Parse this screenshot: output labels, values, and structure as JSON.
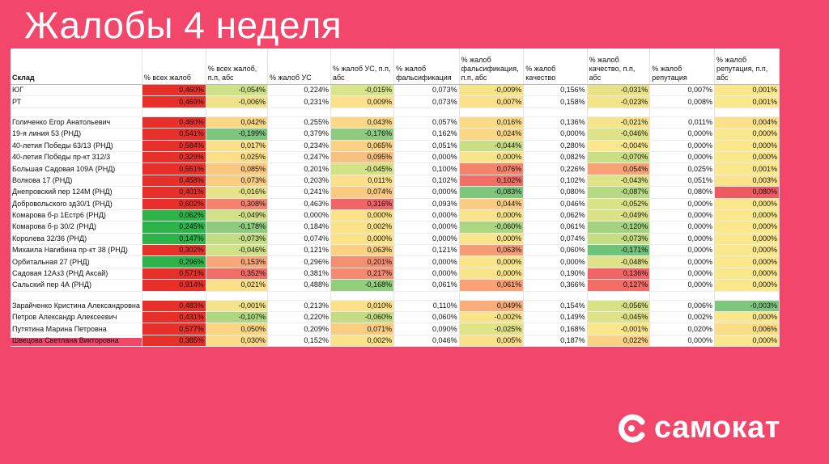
{
  "title": "Жалобы 4 неделя",
  "brand": "самокат",
  "colors": {
    "background": "#F2476A",
    "red": "#E8302A",
    "green": "#2DB34A"
  },
  "table": {
    "headers": [
      "Склад",
      "% всех жалоб",
      "% всех жалоб, п.п, абс",
      "% жалоб УС",
      "% жалоб УС, п.п, абс",
      "% жалоб фальсификация",
      "% жалоб фальсификация, п.п, абс",
      "% жалоб качество",
      "% жалоб качество, п.п, абс",
      "% жалоб репутация",
      "% жалоб репутация, п.п, абс"
    ],
    "rows": [
      {
        "type": "row",
        "name": "ЮГ",
        "values": [
          "0,460%",
          "-0,054%",
          "0,224%",
          "-0,015%",
          "0,073%",
          "-0,009%",
          "0,156%",
          "-0,031%",
          "0,007%",
          "0,001%"
        ],
        "colors": [
          "#E8302A",
          "#CFE287",
          "#FFFFFF",
          "#D9E58A",
          "#FFFFFF",
          "#F8E58A",
          "#FFFFFF",
          "#E8E388",
          "#FFFFFF",
          "#FBE78C"
        ]
      },
      {
        "type": "row",
        "name": "РТ",
        "values": [
          "0,469%",
          "-0,006%",
          "0,231%",
          "0,009%",
          "0,073%",
          "0,007%",
          "0,158%",
          "-0,023%",
          "0,008%",
          "0,001%"
        ],
        "colors": [
          "#E8302A",
          "#EFE289",
          "#FFFFFF",
          "#FCE18A",
          "#FFFFFF",
          "#FCE08A",
          "#FFFFFF",
          "#F3E389",
          "#FFFFFF",
          "#FBE78C"
        ]
      },
      {
        "type": "blank"
      },
      {
        "type": "row",
        "name": "Голиченко Егор Анатольевич",
        "values": [
          "0,460%",
          "0,042%",
          "0,255%",
          "0,043%",
          "0,057%",
          "0,016%",
          "0,136%",
          "-0,021%",
          "0,011%",
          "0,004%"
        ],
        "colors": [
          "#E8302A",
          "#FDD884",
          "#FFFFFF",
          "#FCD886",
          "#FFFFFF",
          "#FCDB86",
          "#FFFFFF",
          "#F6E58A",
          "#FFFFFF",
          "#FBE28A"
        ]
      },
      {
        "type": "row",
        "name": "19-я линия 53 (РНД)",
        "values": [
          "0,541%",
          "-0,199%",
          "0,379%",
          "-0,176%",
          "0,162%",
          "0,024%",
          "0,000%",
          "-0,046%",
          "0,000%",
          "0,000%"
        ],
        "colors": [
          "#E8302A",
          "#7EC67D",
          "#FFFFFF",
          "#8FCB7E",
          "#FFFFFF",
          "#FBD684",
          "#FFFFFF",
          "#DFE387",
          "#FFFFFF",
          "#FBE78C"
        ]
      },
      {
        "type": "row",
        "name": "40-летия Победы 63/13 (РНД)",
        "values": [
          "0,584%",
          "0,017%",
          "0,234%",
          "0,065%",
          "0,051%",
          "-0,044%",
          "0,280%",
          "-0,004%",
          "0,000%",
          "0,000%"
        ],
        "colors": [
          "#E8302A",
          "#FBE08A",
          "#FFFFFF",
          "#FBD184",
          "#FFFFFF",
          "#C7DE84",
          "#FFFFFF",
          "#FBE78C",
          "#FFFFFF",
          "#FBE78C"
        ]
      },
      {
        "type": "row",
        "name": "40-летия Победы пр-кт 312/3",
        "values": [
          "0,329%",
          "0,025%",
          "0,247%",
          "0,095%",
          "0,000%",
          "0,000%",
          "0,082%",
          "-0,070%",
          "0,000%",
          "0,000%"
        ],
        "colors": [
          "#E8302A",
          "#FBDE88",
          "#FFFFFF",
          "#F9C07F",
          "#FFFFFF",
          "#FBE58B",
          "#FFFFFF",
          "#CADF84",
          "#FFFFFF",
          "#FBE78C"
        ]
      },
      {
        "type": "row",
        "name": "Большая Садовая 109А (РНД)",
        "values": [
          "0,551%",
          "0,085%",
          "0,201%",
          "-0,045%",
          "0,100%",
          "0,076%",
          "0,226%",
          "0,054%",
          "0,025%",
          "0,001%"
        ],
        "colors": [
          "#E8302A",
          "#FAC880",
          "#FFFFFF",
          "#D4E185",
          "#FFFFFF",
          "#F5846D",
          "#FFFFFF",
          "#F8A276",
          "#FFFFFF",
          "#FBE78C"
        ]
      },
      {
        "type": "row",
        "name": "Волкова 17 (РНД)",
        "values": [
          "0,458%",
          "0,073%",
          "0,203%",
          "0,011%",
          "0,102%",
          "0,102%",
          "0,102%",
          "-0,043%",
          "0,051%",
          "0,003%"
        ],
        "colors": [
          "#E8302A",
          "#FACD82",
          "#FFFFFF",
          "#FCE18A",
          "#FFFFFF",
          "#F26F67",
          "#FFFFFF",
          "#E1E387",
          "#FFFFFF",
          "#FBE48B"
        ]
      },
      {
        "type": "row",
        "name": "Днепровский пер 124М (РНД)",
        "values": [
          "0,401%",
          "-0,016%",
          "0,241%",
          "0,074%",
          "0,000%",
          "-0,083%",
          "0,080%",
          "-0,087%",
          "0,080%",
          "0,080%"
        ],
        "colors": [
          "#E8302A",
          "#E8E388",
          "#FFFFFF",
          "#FACA81",
          "#FFFFFF",
          "#7EC67D",
          "#FFFFFF",
          "#B8D983",
          "#FFFFFF",
          "#EE5A5F"
        ]
      },
      {
        "type": "row",
        "name": "Добровольского зд30/1 (РНД)",
        "values": [
          "0,602%",
          "0,308%",
          "0,463%",
          "0,316%",
          "0,093%",
          "0,044%",
          "0,046%",
          "-0,052%",
          "0,000%",
          "0,000%"
        ],
        "colors": [
          "#E8302A",
          "#F4846D",
          "#FFFFFF",
          "#F16566",
          "#FFFFFF",
          "#FACB82",
          "#FFFFFF",
          "#DAE386",
          "#FFFFFF",
          "#FBE78C"
        ]
      },
      {
        "type": "row",
        "name": "Комарова б-р 1Естр6 (РНД)",
        "values": [
          "0,062%",
          "-0,049%",
          "0,000%",
          "0,000%",
          "0,000%",
          "0,000%",
          "0,062%",
          "-0,049%",
          "0,000%",
          "0,000%"
        ],
        "colors": [
          "#2DB34A",
          "#D2E186",
          "#FFFFFF",
          "#FCE38A",
          "#FFFFFF",
          "#FBE58B",
          "#FFFFFF",
          "#DCE386",
          "#FFFFFF",
          "#FBE78C"
        ]
      },
      {
        "type": "row",
        "name": "Комарова б-р 30/2 (РНД)",
        "values": [
          "0,245%",
          "-0,178%",
          "0,184%",
          "0,002%",
          "0,000%",
          "-0,060%",
          "0,061%",
          "-0,120%",
          "0,000%",
          "0,000%"
        ],
        "colors": [
          "#2DB34A",
          "#8FCB7E",
          "#FFFFFF",
          "#FCE38A",
          "#FFFFFF",
          "#ACD682",
          "#FFFFFF",
          "#A3D380",
          "#FFFFFF",
          "#FBE78C"
        ]
      },
      {
        "type": "row",
        "name": "Королева 32/36 (РНД)",
        "values": [
          "0,147%",
          "-0,073%",
          "0,074%",
          "0,000%",
          "0,000%",
          "0,000%",
          "0,074%",
          "-0,073%",
          "0,000%",
          "0,000%"
        ],
        "colors": [
          "#2DB34A",
          "#C3DD84",
          "#FFFFFF",
          "#FCE38A",
          "#FFFFFF",
          "#FBE58B",
          "#FFFFFF",
          "#C6DE84",
          "#FFFFFF",
          "#FBE78C"
        ]
      },
      {
        "type": "row",
        "name": "Михаила Нагибина пр-кт 38 (РНД)",
        "values": [
          "0,302%",
          "-0,046%",
          "0,121%",
          "0,063%",
          "0,121%",
          "0,063%",
          "0,060%",
          "-0,171%",
          "0,000%",
          "0,000%"
        ],
        "colors": [
          "#E8302A",
          "#D3E186",
          "#FFFFFF",
          "#FBD284",
          "#FFFFFF",
          "#F69B74",
          "#FFFFFF",
          "#6FC27A",
          "#FFFFFF",
          "#FBE78C"
        ]
      },
      {
        "type": "row",
        "name": "Орбитальная 27 (РНД)",
        "values": [
          "0,296%",
          "0,153%",
          "0,296%",
          "0,201%",
          "0,000%",
          "0,000%",
          "0,000%",
          "-0,048%",
          "0,000%",
          "0,000%"
        ],
        "colors": [
          "#2DB34A",
          "#F8A778",
          "#FFFFFF",
          "#F49070",
          "#FFFFFF",
          "#FBE58B",
          "#FFFFFF",
          "#DDE386",
          "#FFFFFF",
          "#FBE78C"
        ]
      },
      {
        "type": "row",
        "name": "Садовая 12Аз3 (РНД Аксай)",
        "values": [
          "0,571%",
          "0,352%",
          "0,381%",
          "0,217%",
          "0,000%",
          "0,000%",
          "0,190%",
          "0,136%",
          "0,000%",
          "0,000%"
        ],
        "colors": [
          "#E8302A",
          "#F16E67",
          "#FFFFFF",
          "#F48A6F",
          "#FFFFFF",
          "#FBE58B",
          "#FFFFFF",
          "#F26466",
          "#FFFFFF",
          "#FBE78C"
        ]
      },
      {
        "type": "row",
        "name": "Сальский пер 4А (РНД)",
        "values": [
          "0,914%",
          "0,021%",
          "0,488%",
          "-0,168%",
          "0,061%",
          "0,061%",
          "0,366%",
          "0,127%",
          "0,000%",
          "0,000%"
        ],
        "colors": [
          "#E8302A",
          "#FBDF89",
          "#FFFFFF",
          "#93CD7E",
          "#FFFFFF",
          "#F9A277",
          "#FFFFFF",
          "#F36D67",
          "#FFFFFF",
          "#FBE78C"
        ]
      },
      {
        "type": "blank"
      },
      {
        "type": "row",
        "name": "Зарайченко Кристина Александровна",
        "values": [
          "0,483%",
          "-0,001%",
          "0,213%",
          "0,010%",
          "0,110%",
          "0,049%",
          "0,154%",
          "-0,056%",
          "0,006%",
          "-0,003%"
        ],
        "colors": [
          "#E8302A",
          "#F3E38A",
          "#FFFFFF",
          "#FCE18A",
          "#FFFFFF",
          "#F8AE7A",
          "#FFFFFF",
          "#D7E286",
          "#FFFFFF",
          "#7EC67D"
        ]
      },
      {
        "type": "row",
        "name": "Петров Александр Алексеевич",
        "values": [
          "0,431%",
          "-0,107%",
          "0,220%",
          "-0,060%",
          "0,060%",
          "-0,002%",
          "0,149%",
          "-0,045%",
          "0,002%",
          "0,000%"
        ],
        "colors": [
          "#E8302A",
          "#AFD782",
          "#FFFFFF",
          "#C4DD84",
          "#FFFFFF",
          "#F8E48A",
          "#FFFFFF",
          "#DFE387",
          "#FFFFFF",
          "#FBE78C"
        ]
      },
      {
        "type": "row",
        "name": "Путятина Марина Петровна",
        "values": [
          "0,577%",
          "0,050%",
          "0,209%",
          "0,071%",
          "0,090%",
          "-0,025%",
          "0,168%",
          "-0,001%",
          "0,020%",
          "0,006%"
        ],
        "colors": [
          "#E8302A",
          "#FBD584",
          "#FFFFFF",
          "#FBCC82",
          "#FFFFFF",
          "#E0E387",
          "#FFFFFF",
          "#FBE68B",
          "#FFFFFF",
          "#FBDD88"
        ]
      },
      {
        "type": "row",
        "name": "Швецова Светлана Викторовна",
        "values": [
          "0,385%",
          "0,030%",
          "0,152%",
          "0,002%",
          "0,046%",
          "0,005%",
          "0,187%",
          "0,022%",
          "0,000%",
          "0,000%"
        ],
        "colors": [
          "#E8302A",
          "#FBDC88",
          "#FFFFFF",
          "#FCE38A",
          "#FFFFFF",
          "#FBE18A",
          "#FFFFFF",
          "#FBD183",
          "#FFFFFF",
          "#FBE78C"
        ]
      }
    ]
  }
}
